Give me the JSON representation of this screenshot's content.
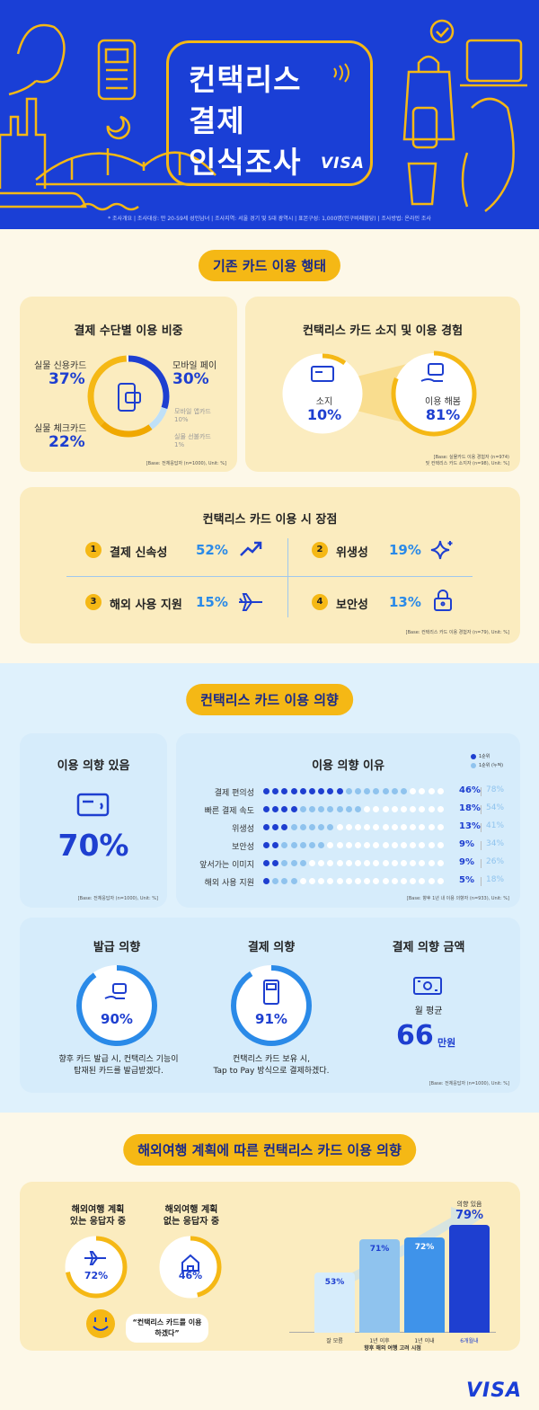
{
  "colors": {
    "brand_blue": "#1a3fd6",
    "accent_yellow": "#f5b815",
    "light_blue": "#8fc3ee",
    "pale_blue": "#d6ecfb",
    "cream": "#fbecbf"
  },
  "hero": {
    "title_line1": "컨택리스",
    "title_line2": "결제",
    "title_line3": "인식조사",
    "brand": "VISA",
    "survey_note": "* 조사개요 | 조사대상: 만 20-59세 성인남녀 | 조사지역: 서울 경기 및 5대 광역시 | 표본구성: 1,000명(인구비례할당) | 조사방법: 온라인 조사"
  },
  "section1": {
    "pill": "기존 카드 이용 행태",
    "share": {
      "title": "결제 수단별 이용 비중",
      "credit_label": "실물 신용카드",
      "credit_pct": "37%",
      "check_label": "실물 체크카드",
      "check_pct": "22%",
      "mobile_label": "모바일 페이",
      "mobile_pct": "30%",
      "mobilecard_label": "모바일 앱카드",
      "mobilecard_pct": "10%",
      "prepaid_label": "실물 선불카드",
      "prepaid_pct": "1%",
      "base": "[Base: 전체응답자 (n=1000), Unit: %]"
    },
    "ownership": {
      "title": "컨택리스 카드 소지 및 이용 경험",
      "own_label": "소지",
      "own_pct": "10%",
      "use_label": "이용 해봄",
      "use_pct": "81%",
      "base1": "[Base: 실물카드 이용 경험자 (n=974)",
      "base2": "및 컨택리스 카드 소지자 (n=98), Unit: %]"
    },
    "advantages": {
      "title": "컨택리스 카드 이용 시 장점",
      "items": [
        {
          "num": "1",
          "label": "결제 신속성",
          "pct": "52%"
        },
        {
          "num": "2",
          "label": "위생성",
          "pct": "19%"
        },
        {
          "num": "3",
          "label": "해외 사용 지원",
          "pct": "15%"
        },
        {
          "num": "4",
          "label": "보안성",
          "pct": "13%"
        }
      ],
      "base": "[Base: 컨택리스 카드 이용 경험자 (n=79), Unit: %]"
    }
  },
  "section2": {
    "pill": "컨택리스 카드 이용 의향",
    "intent": {
      "title": "이용 의향 있음",
      "pct": "70%",
      "base": "[Base: 전체응답자 (n=1000), Unit: %]"
    },
    "reasons": {
      "title": "이용 의향 이유",
      "legend1": "1순위",
      "legend2": "1순위 (누적)",
      "rows": [
        {
          "label": "결제 편의성",
          "first": "46%",
          "cum": "78%"
        },
        {
          "label": "빠른 결제 속도",
          "first": "18%",
          "cum": "54%"
        },
        {
          "label": "위생성",
          "first": "13%",
          "cum": "41%"
        },
        {
          "label": "보안성",
          "first": "9%",
          "cum": "34%"
        },
        {
          "label": "앞서가는 이미지",
          "first": "9%",
          "cum": "26%"
        },
        {
          "label": "해외 사용 지원",
          "first": "5%",
          "cum": "18%"
        }
      ],
      "base": "[Base: 향후 1년 내 이용 의향자 (n=933), Unit: %]"
    },
    "issue": {
      "title": "발급 의향",
      "pct": "90%",
      "desc1": "향후 카드 발급 시, 컨택리스 기능이",
      "desc2": "탑재된 카드를 발급받겠다."
    },
    "pay": {
      "title": "결제 의향",
      "pct": "91%",
      "desc1": "컨택리스 카드 보유 시,",
      "desc2": "Tap to Pay 방식으로 결제하겠다."
    },
    "amount": {
      "title": "결제 의향 금액",
      "sub": "월 평균",
      "value": "66",
      "unit": "만원"
    },
    "base": "[Base: 전체응답자 (n=1000), Unit: %]"
  },
  "section3": {
    "pill": "해외여행 계획에 따른 컨택리스 카드 이용 의향",
    "with_plan": {
      "label1": "해외여행 계획",
      "label2": "있는 응답자 중",
      "pct": "72%"
    },
    "without_plan": {
      "label1": "해외여행 계획",
      "label2": "없는 응답자 중",
      "pct": "46%"
    },
    "quote": "“컨택리스 카드를 이용하겠다”",
    "intent_label": "의향 있음",
    "xaxis_title": "향후 해외 여행 고려 시점"
  },
  "chart_data": {
    "type": "bar",
    "categories": [
      "잘 모름",
      "1년 이후",
      "1년 이내",
      "6개월내"
    ],
    "values": [
      53,
      71,
      72,
      79
    ],
    "xlabel": "향후 해외 여행 고려 시점",
    "ylabel": "",
    "ylim": [
      0,
      100
    ],
    "unit": "%"
  },
  "footer": {
    "brand": "VISA"
  }
}
